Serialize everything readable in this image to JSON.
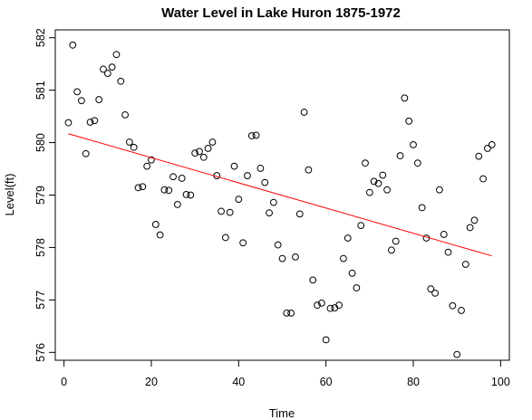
{
  "chart_data": {
    "type": "scatter",
    "title": "Water Level in Lake Huron 1875-1972",
    "xlabel": "Time",
    "ylabel": "Level(ft)",
    "xlim": [
      -2,
      102
    ],
    "ylim": [
      575.85,
      582.15
    ],
    "xticks": [
      0,
      20,
      40,
      60,
      80,
      100
    ],
    "yticks": [
      576,
      577,
      578,
      579,
      580,
      581,
      582
    ],
    "grid": false,
    "legend": "none",
    "point_color": "#000000",
    "trend_color": "#ff0000",
    "series": [
      {
        "values": [
          580.38,
          581.86,
          580.97,
          580.8,
          579.79,
          580.39,
          580.42,
          580.82,
          581.4,
          581.32,
          581.44,
          581.68,
          581.17,
          580.53,
          580.01,
          579.91,
          579.14,
          579.16,
          579.55,
          579.67,
          578.44,
          578.24,
          579.1,
          579.09,
          579.35,
          578.82,
          579.32,
          579.01,
          579.0,
          579.8,
          579.83,
          579.72,
          579.89,
          580.01,
          579.37,
          578.69,
          578.19,
          578.67,
          579.55,
          578.92,
          578.09,
          579.37,
          580.13,
          580.14,
          579.51,
          579.24,
          578.66,
          578.86,
          578.05,
          577.79,
          576.75,
          576.75,
          577.82,
          578.64,
          580.58,
          579.48,
          577.38,
          576.9,
          576.94,
          576.24,
          576.84,
          576.85,
          576.9,
          577.79,
          578.18,
          577.51,
          577.23,
          578.42,
          579.61,
          579.05,
          579.26,
          579.22,
          579.38,
          579.1,
          577.95,
          578.12,
          579.75,
          580.85,
          580.41,
          579.96,
          579.61,
          578.76,
          578.18,
          577.21,
          577.13,
          579.1,
          578.25,
          577.91,
          576.89,
          575.96,
          576.8,
          577.68,
          578.38,
          578.52,
          579.74,
          579.31,
          579.89,
          579.96
        ]
      }
    ],
    "trend_line": {
      "x": [
        1,
        98
      ],
      "y": [
        580.17,
        577.84
      ]
    }
  }
}
